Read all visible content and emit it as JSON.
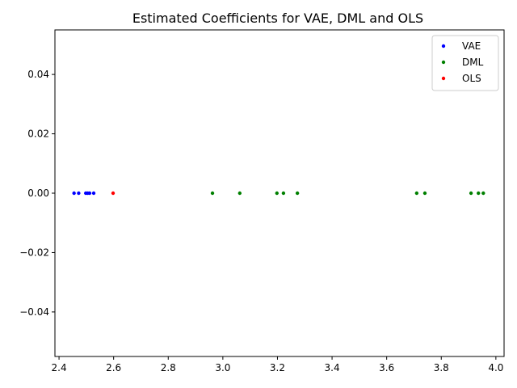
{
  "chart_data": {
    "type": "scatter",
    "title": "Estimated Coefficients for VAE, DML and OLS",
    "xlabel": "",
    "ylabel": "",
    "xlim": [
      2.385,
      4.03
    ],
    "ylim": [
      -0.055,
      0.055
    ],
    "x_ticks": [
      2.4,
      2.6,
      2.8,
      3.0,
      3.2,
      3.4,
      3.6,
      3.8,
      4.0
    ],
    "x_tick_labels": [
      "2.4",
      "2.6",
      "2.8",
      "3.0",
      "3.2",
      "3.4",
      "3.6",
      "3.8",
      "4.0"
    ],
    "y_ticks": [
      -0.04,
      -0.02,
      0.0,
      0.02,
      0.04
    ],
    "y_tick_labels": [
      "−0.04",
      "−0.02",
      "0.00",
      "0.02",
      "0.04"
    ],
    "grid": false,
    "legend_position": "top-right",
    "series": [
      {
        "name": "VAE",
        "color": "#0000ff",
        "x": [
          2.455,
          2.472,
          2.498,
          2.505,
          2.512,
          2.527
        ],
        "y": [
          0,
          0,
          0,
          0,
          0,
          0
        ]
      },
      {
        "name": "DML",
        "color": "#008000",
        "x": [
          2.962,
          3.062,
          3.198,
          3.222,
          3.273,
          3.71,
          3.74,
          3.909,
          3.936,
          3.954
        ],
        "y": [
          0,
          0,
          0,
          0,
          0,
          0,
          0,
          0,
          0,
          0
        ]
      },
      {
        "name": "OLS",
        "color": "#ff0000",
        "x": [
          2.598
        ],
        "y": [
          0
        ]
      }
    ]
  }
}
